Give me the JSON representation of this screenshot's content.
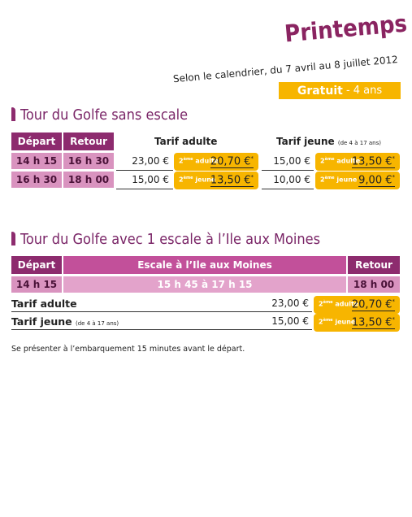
{
  "header": {
    "title": "Printemps",
    "subtitle": "Selon le calendrier, du 7 avril au 8 juillet 2012",
    "badge": {
      "strong": "Gratuit",
      "rest": " - 4 ans"
    }
  },
  "section1": {
    "title": "Tour du Golfe sans escale",
    "headers": {
      "depart": "Départ",
      "retour": "Retour",
      "adult": "Tarif adulte",
      "young": "Tarif jeune",
      "young_note": "(de 4 à 17 ans)"
    },
    "rows": [
      {
        "depart": "14 h 15",
        "retour": "16 h 30",
        "adult": {
          "price": "23,00 €",
          "promo": {
            "ordinal": "2",
            "suffix": "ème",
            "word": "adulte",
            "price": "20,70 €",
            "star": "*"
          }
        },
        "young": {
          "price": "15,00 €",
          "promo": {
            "ordinal": "2",
            "suffix": "ème",
            "word": "adulte",
            "price": "13,50 €",
            "star": "*"
          }
        }
      },
      {
        "depart": "16 h 30",
        "retour": "18 h 00",
        "adult": {
          "price": "15,00 €",
          "promo": {
            "ordinal": "2",
            "suffix": "ème",
            "word": "jeune",
            "price": "13,50 €",
            "star": "*"
          }
        },
        "young": {
          "price": "10,00 €",
          "promo": {
            "ordinal": "2",
            "suffix": "ème",
            "word": "jeune",
            "price": "9,00 €",
            "star": "*"
          }
        }
      }
    ]
  },
  "section2": {
    "title": "Tour du Golfe avec 1 escale à l’Ile aux Moines",
    "headers": {
      "depart": "Départ",
      "stop": "Escale à l’Ile aux Moines",
      "retour": "Retour"
    },
    "row": {
      "depart": "14 h 15",
      "stop": "15 h 45 à 17 h 15",
      "retour": "18 h 00"
    },
    "tariffs": [
      {
        "label": "Tarif adulte",
        "price": "23,00 €",
        "promo": {
          "ordinal": "2",
          "suffix": "ème",
          "word": "adulte",
          "price": "20,70 €",
          "star": "*"
        }
      },
      {
        "label": "Tarif jeune",
        "note": "(de 4 à 17 ans)",
        "price": "15,00 €",
        "promo": {
          "ordinal": "2",
          "suffix": "ème",
          "word": "jeune",
          "price": "13,50 €",
          "star": "*"
        }
      }
    ]
  },
  "note": "Se présenter à l’embarquement 15 minutes avant le départ."
}
